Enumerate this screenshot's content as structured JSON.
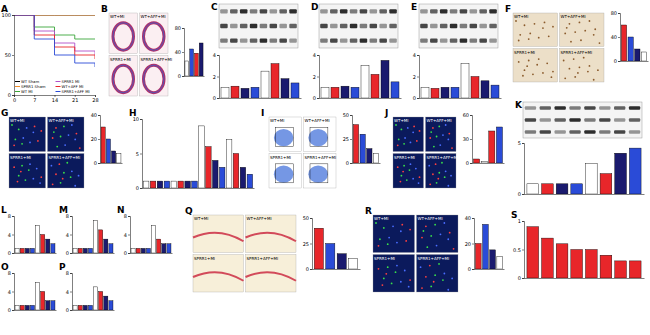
{
  "chart_data": [
    {
      "type": "line",
      "title": "A",
      "x": [
        0,
        7,
        14,
        21,
        28
      ],
      "xlim": [
        0,
        28
      ],
      "xticks": [
        0,
        7,
        14,
        21,
        28
      ],
      "ylim": [
        0,
        100
      ],
      "yticks": [
        0,
        50,
        100
      ],
      "legend": "lower left",
      "series": [
        {
          "name": "WT Sham",
          "color": "#000000",
          "values": [
            100,
            100,
            100,
            100,
            100
          ]
        },
        {
          "name": "SPRR1 Sham",
          "color": "#f28c28",
          "values": [
            100,
            100,
            100,
            100,
            100
          ]
        },
        {
          "name": "WT MI",
          "color": "#3aa63a",
          "values": [
            100,
            85,
            75,
            70,
            70
          ]
        },
        {
          "name": "SPRR1 MI",
          "color": "#b04fc8",
          "values": [
            100,
            80,
            65,
            55,
            50
          ]
        },
        {
          "name": "WT+AFF MI",
          "color": "#e8262a",
          "values": [
            100,
            75,
            60,
            50,
            45
          ]
        },
        {
          "name": "SPRR1+AFF MI",
          "color": "#2a4bd7",
          "values": [
            100,
            70,
            50,
            40,
            35
          ]
        }
      ]
    },
    {
      "type": "bar",
      "categories": [
        null,
        null,
        null,
        null
      ],
      "values": [
        25,
        45,
        38,
        55
      ],
      "colors": [
        "#ffffff",
        "#2a4bd7",
        "#e8262a",
        "#1a1a6e"
      ],
      "ylim": [
        0,
        80
      ],
      "yticks": [
        0,
        40,
        80
      ],
      "tick_labels": "y"
    },
    {
      "type": "bar",
      "categories": [
        null,
        null,
        null,
        null,
        null,
        null,
        null,
        null
      ],
      "values": [
        1,
        1.1,
        0.9,
        1,
        2.5,
        3.2,
        1.8,
        1.4
      ],
      "colors": [
        "#ffffff",
        "#e8262a",
        "#1a1a6e",
        "#2a4bd7",
        "#ffffff",
        "#e8262a",
        "#1a1a6e",
        "#2a4bd7"
      ],
      "ylim": [
        0,
        4
      ],
      "yticks": [
        0,
        2,
        4
      ],
      "tick_labels": "y"
    },
    {
      "type": "bar",
      "categories": [
        null,
        null,
        null,
        null,
        null,
        null,
        null,
        null
      ],
      "values": [
        1,
        1,
        1.1,
        1,
        3,
        2.2,
        3.5,
        1.5
      ],
      "colors": [
        "#ffffff",
        "#e8262a",
        "#1a1a6e",
        "#2a4bd7",
        "#ffffff",
        "#e8262a",
        "#1a1a6e",
        "#2a4bd7"
      ],
      "ylim": [
        0,
        4
      ],
      "yticks": [
        0,
        2,
        4
      ],
      "tick_labels": "y"
    },
    {
      "type": "bar",
      "categories": [
        null,
        null,
        null,
        null,
        null,
        null,
        null,
        null
      ],
      "values": [
        1,
        0.9,
        1,
        1,
        3.2,
        2,
        1.6,
        1.2
      ],
      "colors": [
        "#ffffff",
        "#e8262a",
        "#1a1a6e",
        "#2a4bd7",
        "#ffffff",
        "#e8262a",
        "#1a1a6e",
        "#2a4bd7"
      ],
      "ylim": [
        0,
        4
      ],
      "yticks": [
        0,
        2,
        4
      ],
      "tick_labels": "y"
    },
    {
      "type": "bar",
      "categories": [
        null,
        null,
        null,
        null
      ],
      "values": [
        60,
        40,
        20,
        15
      ],
      "colors": [
        "#e8262a",
        "#2a4bd7",
        "#1a1a6e",
        "#ffffff"
      ],
      "ylim": [
        0,
        80
      ],
      "yticks": [
        0,
        40,
        80
      ],
      "tick_labels": "y"
    },
    {
      "type": "bar",
      "categories": [
        null,
        null,
        null,
        null
      ],
      "values": [
        30,
        20,
        10,
        8
      ],
      "colors": [
        "#e8262a",
        "#2a4bd7",
        "#1a1a6e",
        "#ffffff"
      ],
      "ylim": [
        0,
        40
      ],
      "yticks": [
        0,
        20,
        40
      ],
      "tick_labels": "y"
    },
    {
      "type": "bar",
      "title": "H",
      "categories": [
        null,
        null,
        null,
        null,
        null,
        null,
        null,
        null,
        null,
        null,
        null,
        null,
        null,
        null,
        null,
        null
      ],
      "values": [
        1,
        1,
        1,
        1,
        1,
        1,
        1,
        1,
        9,
        6,
        4,
        3,
        7,
        5,
        3,
        2
      ],
      "colors": [
        "#ffffff",
        "#e8262a",
        "#1a1a6e",
        "#2a4bd7",
        "#ffffff",
        "#e8262a",
        "#1a1a6e",
        "#2a4bd7",
        "#ffffff",
        "#e8262a",
        "#1a1a6e",
        "#2a4bd7",
        "#ffffff",
        "#e8262a",
        "#1a1a6e",
        "#2a4bd7"
      ],
      "ylim": [
        0,
        10
      ],
      "yticks": [
        0,
        5,
        10
      ],
      "tick_labels": "y"
    },
    {
      "type": "bar",
      "categories": [
        null,
        null,
        null,
        null
      ],
      "values": [
        40,
        30,
        15,
        10
      ],
      "colors": [
        "#e8262a",
        "#2a4bd7",
        "#1a1a6e",
        "#ffffff"
      ],
      "ylim": [
        0,
        50
      ],
      "yticks": [
        0,
        25,
        50
      ],
      "tick_labels": "y"
    },
    {
      "type": "bar",
      "categories": [
        null,
        null,
        null,
        null
      ],
      "values": [
        5,
        2,
        40,
        45
      ],
      "colors": [
        "#e8262a",
        "#ffffff",
        "#e8262a",
        "#2a4bd7"
      ],
      "ylim": [
        0,
        60
      ],
      "yticks": [
        0,
        30,
        60
      ],
      "tick_labels": "y"
    },
    {
      "type": "bar",
      "categories": [
        null,
        null,
        null,
        null,
        null,
        null,
        null,
        null
      ],
      "values": [
        1,
        1,
        1,
        1,
        3,
        2,
        4,
        4.5
      ],
      "colors": [
        "#ffffff",
        "#e8262a",
        "#1a1a6e",
        "#2a4bd7",
        "#ffffff",
        "#e8262a",
        "#1a1a6e",
        "#2a4bd7"
      ],
      "ylim": [
        0,
        5
      ],
      "yticks": [
        0,
        5
      ],
      "tick_labels": "y"
    },
    {
      "type": "bar",
      "title": "L",
      "categories": [
        null,
        null,
        null,
        null,
        null,
        null,
        null,
        null
      ],
      "values": [
        1,
        1,
        1,
        1,
        6,
        4,
        3,
        2
      ],
      "colors": [
        "#ffffff",
        "#e8262a",
        "#1a1a6e",
        "#2a4bd7",
        "#ffffff",
        "#e8262a",
        "#1a1a6e",
        "#2a4bd7"
      ],
      "ylim": [
        0,
        8
      ],
      "yticks": [
        0,
        4,
        8
      ],
      "tick_labels": "y"
    },
    {
      "type": "bar",
      "title": "M",
      "categories": [
        null,
        null,
        null,
        null,
        null,
        null,
        null,
        null
      ],
      "values": [
        1,
        1,
        1,
        1,
        7,
        5,
        3,
        2
      ],
      "colors": [
        "#ffffff",
        "#e8262a",
        "#1a1a6e",
        "#2a4bd7",
        "#ffffff",
        "#e8262a",
        "#1a1a6e",
        "#2a4bd7"
      ],
      "ylim": [
        0,
        8
      ],
      "yticks": [
        0,
        4,
        8
      ],
      "tick_labels": "y"
    },
    {
      "type": "bar",
      "title": "N",
      "categories": [
        null,
        null,
        null,
        null,
        null,
        null,
        null,
        null
      ],
      "values": [
        1,
        1,
        1,
        1,
        6,
        3,
        2,
        2
      ],
      "colors": [
        "#ffffff",
        "#e8262a",
        "#1a1a6e",
        "#2a4bd7",
        "#ffffff",
        "#e8262a",
        "#1a1a6e",
        "#2a4bd7"
      ],
      "ylim": [
        0,
        8
      ],
      "yticks": [
        0,
        4,
        8
      ],
      "tick_labels": "y"
    },
    {
      "type": "bar",
      "title": "O",
      "categories": [
        null,
        null,
        null,
        null,
        null,
        null,
        null,
        null
      ],
      "values": [
        1,
        1,
        1,
        1,
        6,
        4,
        2,
        2
      ],
      "colors": [
        "#ffffff",
        "#e8262a",
        "#1a1a6e",
        "#2a4bd7",
        "#ffffff",
        "#e8262a",
        "#1a1a6e",
        "#2a4bd7"
      ],
      "ylim": [
        0,
        8
      ],
      "yticks": [
        0,
        4,
        8
      ],
      "tick_labels": "y"
    },
    {
      "type": "bar",
      "title": "P",
      "categories": [
        null,
        null,
        null,
        null,
        null,
        null,
        null,
        null
      ],
      "values": [
        1,
        1,
        1,
        1,
        5,
        4,
        3,
        2
      ],
      "colors": [
        "#ffffff",
        "#e8262a",
        "#1a1a6e",
        "#2a4bd7",
        "#ffffff",
        "#e8262a",
        "#1a1a6e",
        "#2a4bd7"
      ],
      "ylim": [
        0,
        8
      ],
      "yticks": [
        0,
        4,
        8
      ],
      "tick_labels": "y"
    },
    {
      "type": "bar",
      "categories": [
        null,
        null,
        null,
        null
      ],
      "values": [
        40,
        25,
        15,
        10
      ],
      "colors": [
        "#e8262a",
        "#2a4bd7",
        "#1a1a6e",
        "#ffffff"
      ],
      "ylim": [
        0,
        50
      ],
      "yticks": [
        0,
        25,
        50
      ],
      "tick_labels": "y"
    },
    {
      "type": "bar",
      "categories": [
        null,
        null,
        null,
        null
      ],
      "values": [
        20,
        35,
        15,
        10
      ],
      "colors": [
        "#e8262a",
        "#2a4bd7",
        "#1a1a6e",
        "#ffffff"
      ],
      "ylim": [
        0,
        40
      ],
      "yticks": [
        0,
        20,
        40
      ],
      "tick_labels": "y"
    },
    {
      "type": "bar",
      "title": "S",
      "categories": [
        null,
        null,
        null,
        null,
        null,
        null,
        null,
        null
      ],
      "values": [
        0.9,
        0.7,
        0.6,
        0.5,
        0.5,
        0.4,
        0.3,
        0.3
      ],
      "colors": [
        "#e8262a",
        "#e8262a",
        "#e8262a",
        "#e8262a",
        "#e8262a",
        "#e8262a",
        "#e8262a",
        "#e8262a"
      ],
      "ylim": [
        0,
        1
      ],
      "yticks": [
        0,
        0.5,
        1
      ],
      "tick_labels": "y"
    }
  ],
  "image_panels": [
    {
      "letter": "B",
      "kind": "histology",
      "labels": [
        "WT+MI",
        "WT+AFF+MI",
        "SPRR1+MI",
        "SPRR1+AFF+MI"
      ]
    },
    {
      "letter": "C",
      "kind": "blot"
    },
    {
      "letter": "D",
      "kind": "blot"
    },
    {
      "letter": "E",
      "kind": "blot"
    },
    {
      "letter": "F",
      "kind": "ihc",
      "labels": [
        "WT+MI",
        "WT+AFF+MI",
        "SPRR1+MI",
        "SPRR1+AFF+MI"
      ]
    },
    {
      "letter": "G",
      "kind": "fluorescence",
      "labels": [
        "WT+MI",
        "WT+AFF+MI",
        "SPRR1+MI",
        "SPRR1+AFF+MI"
      ]
    },
    {
      "letter": "I",
      "kind": "flow",
      "labels": [
        "WT+MI",
        "WT+AFF+MI",
        "SPRR1+MI",
        "SPRR1+AFF+MI"
      ]
    },
    {
      "letter": "J",
      "kind": "fluorescence",
      "labels": [
        "WT+MI",
        "WT+AFF+MI",
        "SPRR1+MI",
        "SPRR1+AFF+MI"
      ]
    },
    {
      "letter": "K",
      "kind": "blot"
    },
    {
      "letter": "Q",
      "kind": "histology2",
      "labels": [
        "WT+MI",
        "WT+AFF+MI",
        "SPRR1+MI",
        "SPRR1+AFF+MI"
      ]
    },
    {
      "letter": "R",
      "kind": "fluorescence",
      "labels": [
        "WT+MI",
        "WT+AFF+MI",
        "SPRR1+MI",
        "SPRR1+AFF+MI"
      ]
    }
  ]
}
